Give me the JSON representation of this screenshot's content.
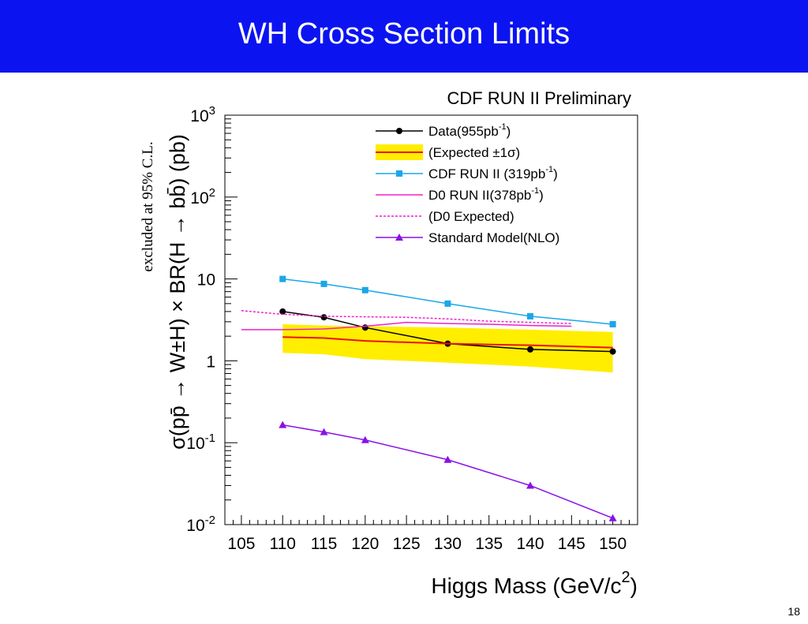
{
  "slide": {
    "title": "WH Cross Section Limits",
    "page_number": "18"
  },
  "colors": {
    "title_bar": "#0b14f0",
    "data": "#000000",
    "expected_band": "#ffee00",
    "expected_line": "#ee1111",
    "cdf_run2": "#1aa7e8",
    "d0_run2": "#ee22cc",
    "d0_expected": "#ee22cc",
    "sm_nlo": "#8a10e8"
  },
  "chart_data": {
    "type": "line",
    "title": "CDF RUN II Preliminary",
    "xlabel": "Higgs Mass (GeV/c",
    "xlabel_sup": "2",
    "xlabel_end": ")",
    "ylabel": "σ(pp̄ → W±H) × BR(H → bb̄) (pb)",
    "ylabel_secondary": "excluded at 95% C.L.",
    "xlim": [
      103,
      153
    ],
    "ylim": [
      0.01,
      1000
    ],
    "yscale": "log",
    "x_ticks": [
      105,
      110,
      115,
      120,
      125,
      130,
      135,
      140,
      145,
      150
    ],
    "y_ticks": [
      {
        "value": 0.01,
        "base": "10",
        "exp": "-2"
      },
      {
        "value": 0.1,
        "base": "10",
        "exp": "-1"
      },
      {
        "value": 1,
        "base": "1",
        "exp": ""
      },
      {
        "value": 10,
        "base": "10",
        "exp": ""
      },
      {
        "value": 100,
        "base": "10",
        "exp": "2"
      },
      {
        "value": 1000,
        "base": "10",
        "exp": "3"
      }
    ],
    "legend_position": "top-right",
    "band": {
      "name": "(Expected ±1σ)",
      "x": [
        110,
        115,
        120,
        130,
        140,
        150
      ],
      "low": [
        1.25,
        1.2,
        1.05,
        0.95,
        0.85,
        0.72
      ],
      "high": [
        2.8,
        2.7,
        2.65,
        2.55,
        2.4,
        2.25
      ]
    },
    "series": [
      {
        "key": "data",
        "name": "Data(955pb",
        "name_sup": "-1",
        "name_end": ")",
        "color": "#000000",
        "marker": "circle",
        "style": "solid",
        "x": [
          110,
          115,
          120,
          130,
          140,
          150
        ],
        "y": [
          4.0,
          3.4,
          2.55,
          1.62,
          1.38,
          1.3
        ]
      },
      {
        "key": "expected",
        "name": "(Expected ±1σ)",
        "name_sup": "",
        "name_end": "",
        "color": "#ee1111",
        "marker": "none",
        "style": "solid",
        "x": [
          110,
          115,
          120,
          130,
          140,
          150
        ],
        "y": [
          1.95,
          1.9,
          1.75,
          1.62,
          1.55,
          1.45
        ]
      },
      {
        "key": "cdf",
        "name": "CDF RUN II (319pb",
        "name_sup": "-1",
        "name_end": ")",
        "color": "#1aa7e8",
        "marker": "square",
        "style": "solid",
        "x": [
          110,
          115,
          120,
          130,
          140,
          150
        ],
        "y": [
          10.0,
          8.7,
          7.3,
          5.0,
          3.5,
          2.8
        ]
      },
      {
        "key": "d0",
        "name": "D0 RUN II(378pb",
        "name_sup": "-1",
        "name_end": ")",
        "color": "#ee22cc",
        "marker": "none",
        "style": "solid",
        "x": [
          105,
          110,
          115,
          120,
          125,
          130,
          135,
          140,
          145
        ],
        "y": [
          2.4,
          2.4,
          2.45,
          2.65,
          2.95,
          2.85,
          2.8,
          2.7,
          2.65
        ]
      },
      {
        "key": "d0exp",
        "name": "(D0 Expected)",
        "name_sup": "",
        "name_end": "",
        "color": "#ee22cc",
        "marker": "none",
        "style": "dotted",
        "x": [
          105,
          110,
          115,
          120,
          125,
          130,
          135,
          140,
          145
        ],
        "y": [
          4.1,
          3.7,
          3.5,
          3.45,
          3.4,
          3.25,
          3.05,
          2.95,
          2.85
        ]
      },
      {
        "key": "sm",
        "name": "Standard Model(NLO)",
        "name_sup": "",
        "name_end": "",
        "color": "#8a10e8",
        "marker": "triangle",
        "style": "solid",
        "x": [
          110,
          115,
          120,
          130,
          140,
          150
        ],
        "y": [
          0.165,
          0.135,
          0.108,
          0.062,
          0.03,
          0.012
        ]
      }
    ]
  }
}
